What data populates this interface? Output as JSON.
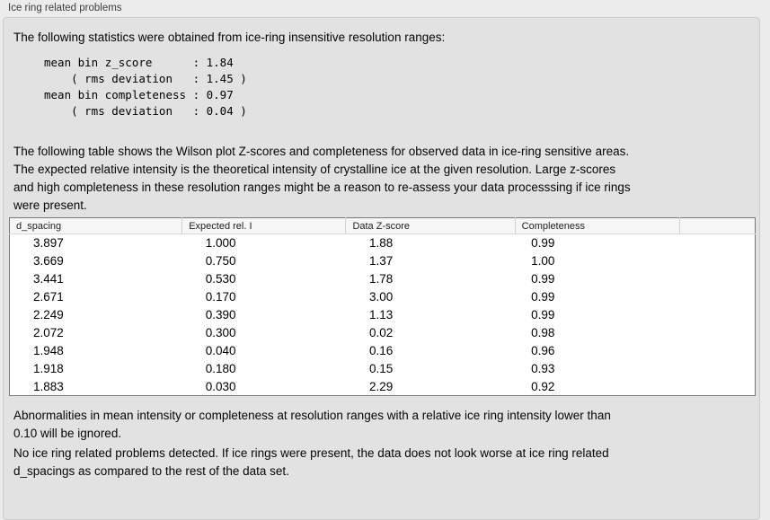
{
  "groupbox": {
    "title": "Ice ring related problems"
  },
  "intro": "The following statistics were obtained from ice-ring insensitive resolution ranges:",
  "stats": {
    "block": "mean bin z_score      : 1.84\n    ( rms deviation   : 1.45 )\nmean bin completeness : 0.97\n    ( rms deviation   : 0.04 )",
    "mean_bin_z_score": "1.84",
    "z_score_rms_deviation": "1.45",
    "mean_bin_completeness": "0.97",
    "completeness_rms_deviation": "0.04"
  },
  "table_description": "The following table shows the Wilson plot Z-scores and completeness for observed data in ice-ring sensitive areas.\nThe expected relative intensity is the theoretical intensity of crystalline ice at the given resolution. Large z-scores\nand high completeness in these resolution ranges might be a reason to re-assess your data processsing if ice rings\nwere present.",
  "table": {
    "columns": [
      "d_spacing",
      "Expected rel. I",
      "Data Z-score",
      "Completeness",
      ""
    ],
    "rows": [
      [
        "3.897",
        "1.000",
        "1.88",
        "0.99"
      ],
      [
        "3.669",
        "0.750",
        "1.37",
        "1.00"
      ],
      [
        "3.441",
        "0.530",
        "1.78",
        "0.99"
      ],
      [
        "2.671",
        "0.170",
        "3.00",
        "0.99"
      ],
      [
        "2.249",
        "0.390",
        "1.13",
        "0.99"
      ],
      [
        "2.072",
        "0.300",
        "0.02",
        "0.98"
      ],
      [
        "1.948",
        "0.040",
        "0.16",
        "0.96"
      ],
      [
        "1.918",
        "0.180",
        "0.15",
        "0.93"
      ],
      [
        "1.883",
        "0.030",
        "2.29",
        "0.92"
      ]
    ]
  },
  "notes": {
    "ignore_note": "Abnormalities in mean intensity or completeness at resolution ranges with a relative ice ring intensity lower than\n0.10 will be ignored.",
    "conclusion": "No ice ring related problems detected. If ice rings were present, the data does not look worse at ice ring related\nd_spacings as compared to the rest of the data set."
  },
  "colors": {
    "page_bg": "#ececec",
    "panel_bg": "#e2e2e2",
    "table_border": "#787878",
    "table_header_bg": "#f6f6f6"
  }
}
